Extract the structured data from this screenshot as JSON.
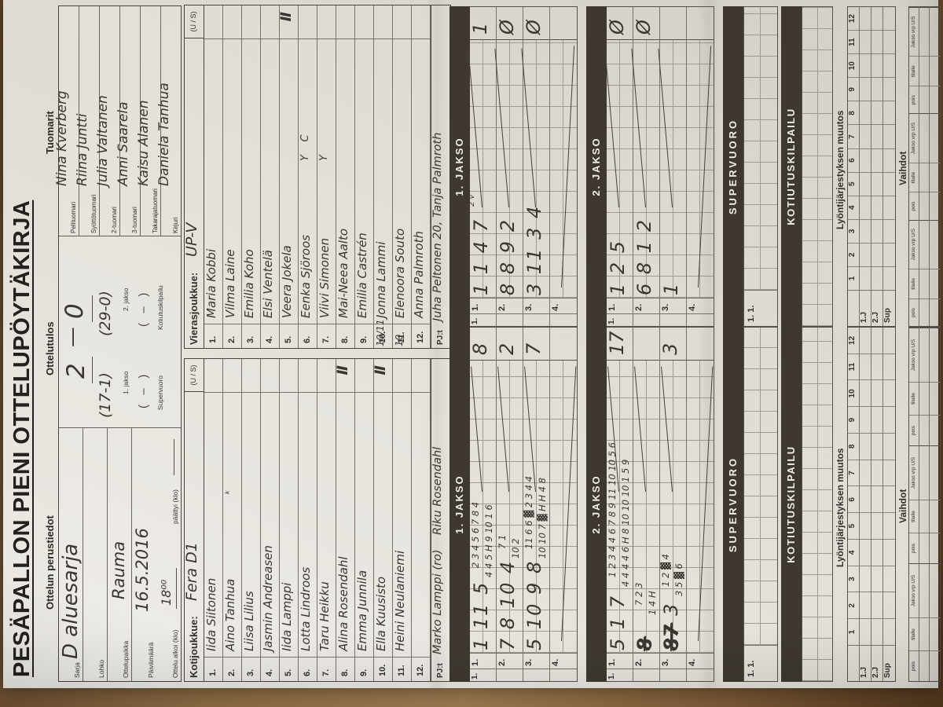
{
  "title": "PESÄPALLON PIENI OTTELUPÖYTÄKIRJA",
  "info": {
    "heading": "Ottelun perustiedot",
    "rows": [
      {
        "label": "Sarja",
        "value": "D aluesarja"
      },
      {
        "label": "Lohko",
        "value": ""
      },
      {
        "label": "Ottelupaikka",
        "value": "Rauma"
      },
      {
        "label": "Päivämäärä",
        "value": "16.5.2016"
      }
    ],
    "start_label": "Ottelu alkoi (klo)",
    "start_value": "18⁰⁰",
    "end_label": "päättyi (klo)",
    "end_value": ""
  },
  "result": {
    "heading": "Ottelutulos",
    "score_home": "2",
    "score_dash": "—",
    "score_away": "0",
    "jakso1_value": "(17-1)",
    "jakso1_label": "1. jakso",
    "jakso2_value": "(29-0)",
    "jakso2_label": "2. jakso",
    "supervuoro_value": "(   –   )",
    "supervuoro_label": "Supervuoro",
    "kotiutus_value": "(   –   )",
    "kotiutus_label": "Kotiutuskilpailu"
  },
  "referees": {
    "heading": "Tuomarit",
    "rows": [
      {
        "label": "Pelituomari",
        "name": "Nina Kverberg"
      },
      {
        "label": "Syöttötuomari",
        "name": "Riina Juntti"
      },
      {
        "label": "2-tuomari",
        "name": "Julia Valtanen"
      },
      {
        "label": "3-tuomari",
        "name": "Anni Saarela"
      },
      {
        "label": "Takarajatuomari",
        "name": "Kaisu Alanen"
      },
      {
        "label": "Kirjuri",
        "name": "Daniela Tanhua"
      }
    ]
  },
  "rosters": {
    "home": {
      "team_label": "Kotijoukkue:",
      "team_name": "Fera D1",
      "us_label": "(U / S)",
      "players": [
        {
          "no": "1.",
          "name": "Iida Siitonen"
        },
        {
          "no": "2.",
          "name": "Aino Tanhua",
          "mark": "ᵏ"
        },
        {
          "no": "3.",
          "name": "Liisa Lilius"
        },
        {
          "no": "4.",
          "name": "Jasmin Andreasen"
        },
        {
          "no": "5.",
          "name": "Iida Lamppi"
        },
        {
          "no": "6.",
          "name": "Lotta Lindroos"
        },
        {
          "no": "7.",
          "name": "Taru Heikku"
        },
        {
          "no": "8.",
          "name": "Alina Rosendahl",
          "us": "Ⅱ"
        },
        {
          "no": "9.",
          "name": "Emma Junnila"
        },
        {
          "no": "10.",
          "name": "Ella Kuusisto",
          "us": "Ⅱ"
        },
        {
          "no": "11.",
          "name": "Heini Neulaniemi"
        },
        {
          "no": "12.",
          "name": ""
        }
      ],
      "pj_label": "PJ:t",
      "pj_value": "Marko Lamppi (ro)    Riku Rosendahl"
    },
    "away": {
      "team_label": "Vierasjoukkue:",
      "team_name": "UP-V",
      "us_label": "(U / S)",
      "players": [
        {
          "no": "1.",
          "name": "Maria Kobbi"
        },
        {
          "no": "2.",
          "name": "Vilma Laine"
        },
        {
          "no": "3.",
          "name": "Emilia Koho"
        },
        {
          "no": "4.",
          "name": "Elsi Ventelä"
        },
        {
          "no": "5.",
          "name": "Veera Jokela",
          "us": "Ⅱ"
        },
        {
          "no": "6.",
          "name": "Eenka Sjöroos",
          "mark": "Y    C"
        },
        {
          "no": "7.",
          "name": "Viivi Simonen",
          "mark": "Y"
        },
        {
          "no": "8.",
          "name": "Mai-Neea Aalto"
        },
        {
          "no": "9.",
          "name": "Emilia Castrén"
        },
        {
          "no": "10.",
          "name": "Jonna Lammi",
          "no_hw": "10/11"
        },
        {
          "no": "11.",
          "name": "Elenoora Souto",
          "no_hw": "10"
        },
        {
          "no": "12.",
          "name": "Anna Palmroth"
        }
      ],
      "pj_label": "PJ:t",
      "pj_value": "Juha Peltonen 20, Tanja Palmroth"
    }
  },
  "grids": {
    "home": [
      {
        "title": "1. JAKSO",
        "rows": [
          {
            "outer": "1.",
            "n": "1.",
            "big": "1 11 5",
            "l1": "2 3 4 5 6 7 8 4",
            "l2": "4 4 5 H 9 10 1 6",
            "total": "8"
          },
          {
            "outer": "",
            "n": "2.",
            "big": "7 8 10 4",
            "l1": "7 1",
            "l2": "10 2",
            "total": "2"
          },
          {
            "outer": "",
            "n": "3.",
            "big": "5 10 9 8",
            "l1": "11 6 6 ▓ 2 3 4 4",
            "l2": "10 10 7 ▓ H H 4 8",
            "total": "7"
          },
          {
            "outer": "",
            "n": "4.",
            "big": "",
            "l1": "",
            "l2": "",
            "total": "",
            "full": true
          }
        ]
      },
      {
        "title": "2. JAKSO",
        "rows": [
          {
            "outer": "1.",
            "n": "1.",
            "big": "5 1 7",
            "l1": "1 2 3 4 4 6 7 8 9 11 10 10 5 6",
            "l2": "4 4 4 4 6 H 8 10 10 10 1 5 9",
            "total": "17"
          },
          {
            "outer": "",
            "n": "2.",
            "big_struck": "8",
            "big": "",
            "l1": "7 2 3",
            "l2": "1 4 H",
            "total": ""
          },
          {
            "outer": "",
            "n": "3.",
            "big_struck": "87",
            "big": "3",
            "l1": "1 2 ▓ 4",
            "l2": "3 5 ▓ 6",
            "total": "3"
          },
          {
            "outer": "",
            "n": "4.",
            "big": "",
            "l1": "",
            "l2": "",
            "total": "",
            "full": true
          }
        ]
      }
    ],
    "away": [
      {
        "title": "1. JAKSO",
        "rows": [
          {
            "outer": "1.",
            "n": "1.",
            "big": "1 1 4 7",
            "note": "2 v",
            "total": "1"
          },
          {
            "outer": "",
            "n": "2.",
            "big": "8 8 9 2",
            "total": "Ø"
          },
          {
            "outer": "",
            "n": "3.",
            "big": "3 11 3 4",
            "total": "Ø"
          },
          {
            "outer": "",
            "n": "4.",
            "big": "",
            "total": "",
            "full": true
          }
        ]
      },
      {
        "title": "2. JAKSO",
        "rows": [
          {
            "outer": "1.",
            "n": "1.",
            "big": "1 2 5",
            "total": "Ø"
          },
          {
            "outer": "",
            "n": "2.",
            "big": "6 8 1 2",
            "total": "Ø"
          },
          {
            "outer": "",
            "n": "3.",
            "big": "1",
            "total": ""
          },
          {
            "outer": "",
            "n": "4.",
            "big": "",
            "total": "",
            "full": true
          }
        ]
      }
    ]
  },
  "sections": {
    "supervuoro_label": "SUPERVUORO",
    "supervuoro_row_label": "1.  1.",
    "kotiutus_label": "KOTIUTUSKILPAILU",
    "muutos_heading": "Lyöntijärjestyksen muutos",
    "muutos_cols": [
      "1",
      "2",
      "3",
      "4",
      "5",
      "6",
      "7",
      "8",
      "9",
      "10",
      "11",
      "12"
    ],
    "muutos_rows": [
      "1.J",
      "2.J",
      "Sup"
    ],
    "vaihdot_heading": "Vaihdot",
    "vaihdot_cols": [
      "pois",
      "tilalle",
      "Jakso vrp U/S"
    ]
  }
}
